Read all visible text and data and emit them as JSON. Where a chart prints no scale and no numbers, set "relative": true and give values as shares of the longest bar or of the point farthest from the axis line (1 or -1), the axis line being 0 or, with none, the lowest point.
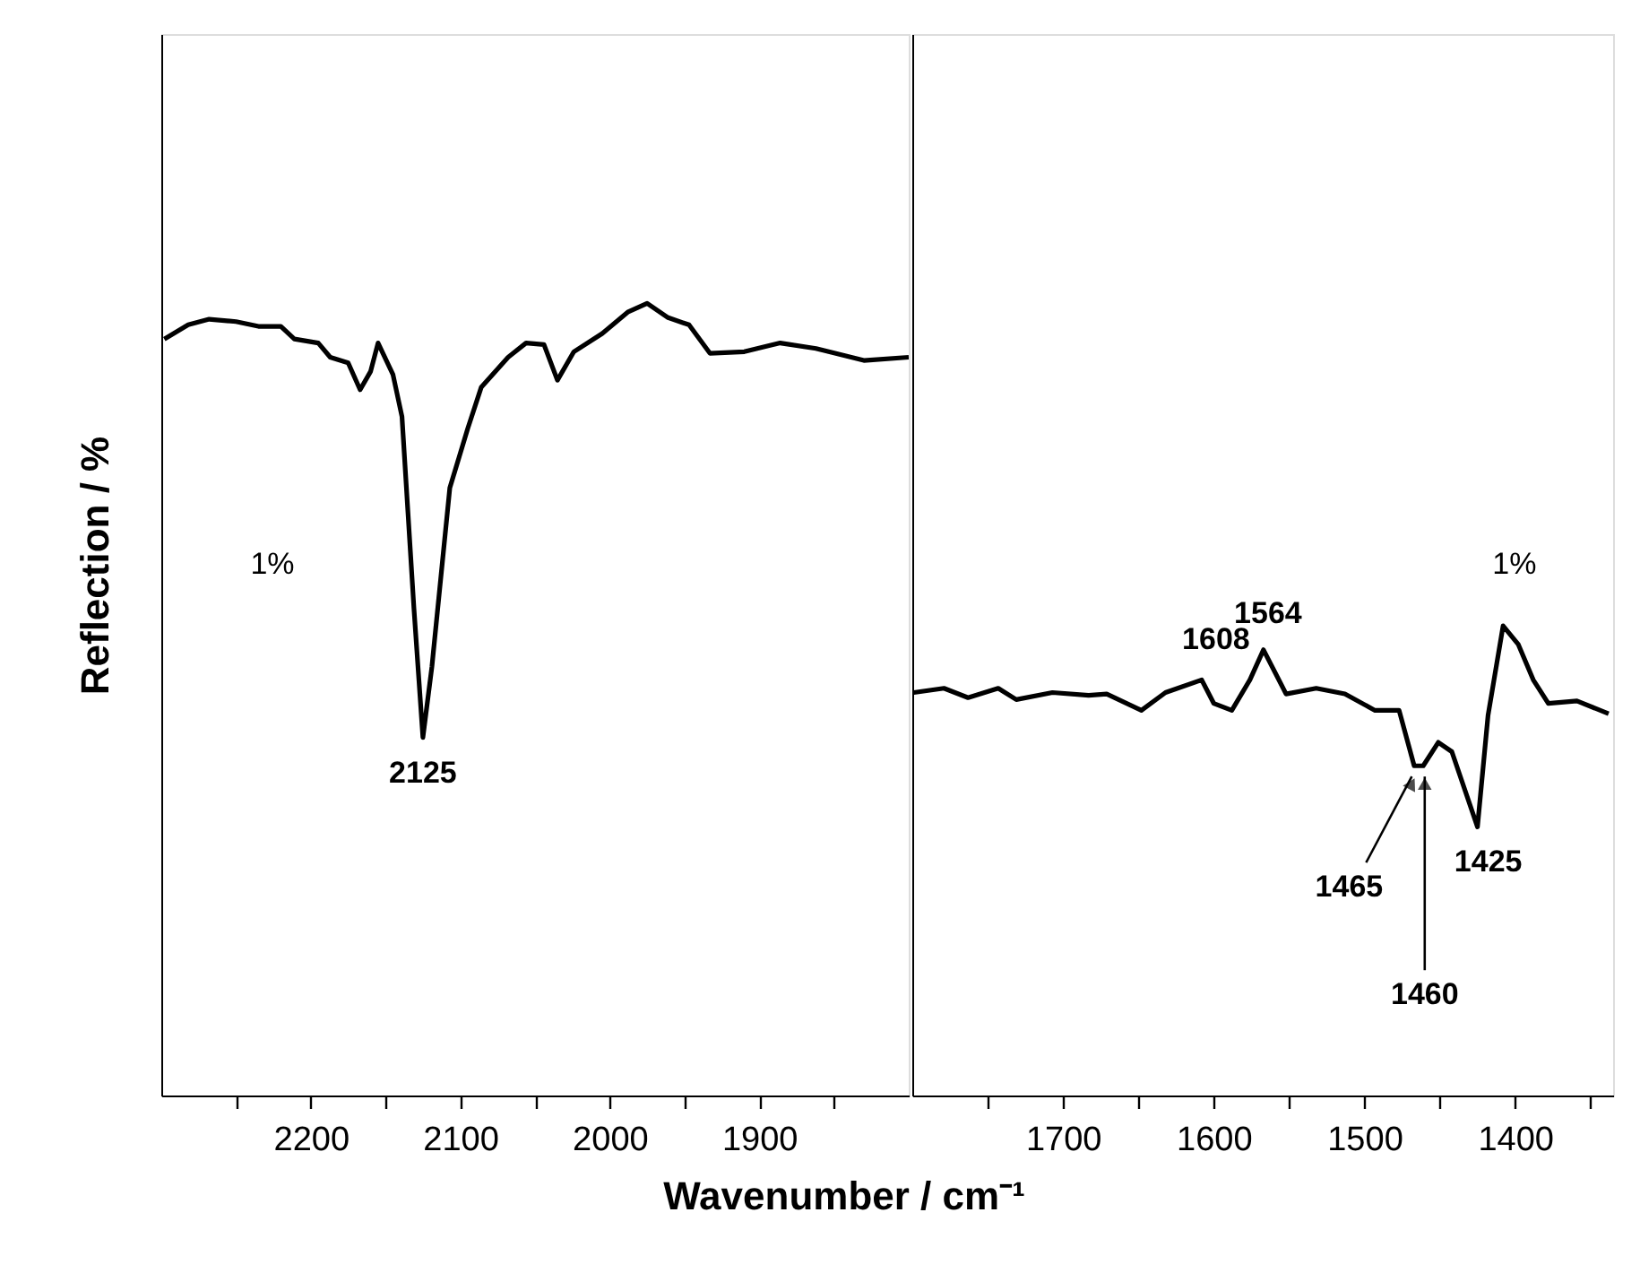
{
  "chart_data": [
    {
      "type": "line",
      "relative": true,
      "ylabel": "Reflection / %",
      "xlabel": "Wavenumber / cm⁻¹",
      "xlim": [
        2300,
        1800
      ],
      "xticks": [
        {
          "value": 2250,
          "label": null
        },
        2200,
        {
          "value": 2150,
          "label": null
        },
        2100,
        {
          "value": 2050,
          "label": null
        },
        2000,
        {
          "value": 1950,
          "label": null
        },
        1900,
        {
          "value": 1850,
          "label": null
        }
      ],
      "grid": false,
      "marker": "none",
      "line_style": "solid",
      "x": [
        2298,
        2282,
        2268,
        2250,
        2235,
        2220,
        2211,
        2195,
        2187,
        2175,
        2167,
        2160,
        2155,
        2145,
        2139,
        2131,
        2125,
        2119,
        2107,
        2095,
        2086,
        2068,
        2056,
        2044,
        2035,
        2024,
        2005,
        1988,
        1975,
        1961,
        1947,
        1933,
        1910,
        1886,
        1862,
        1830,
        1800
      ],
      "series": [
        {
          "color": "#000000",
          "values": [
            0.955,
            0.973,
            0.98,
            0.977,
            0.971,
            0.971,
            0.955,
            0.95,
            0.932,
            0.925,
            0.891,
            0.914,
            0.95,
            0.91,
            0.857,
            0.615,
            0.452,
            0.541,
            0.767,
            0.842,
            0.894,
            0.932,
            0.95,
            0.948,
            0.903,
            0.939,
            0.962,
            0.989,
            1,
            0.982,
            0.973,
            0.937,
            0.939,
            0.95,
            0.943,
            0.928,
            0.932
          ]
        }
      ],
      "annotations": [
        {
          "text": "2125",
          "x": 2125,
          "y": 0.452
        },
        "1%"
      ]
    },
    {
      "type": "line",
      "relative": true,
      "xlim": [
        1800,
        1335
      ],
      "xticks": [
        {
          "value": 1750,
          "label": null
        },
        1700,
        {
          "value": 1650,
          "label": null
        },
        1600,
        {
          "value": 1550,
          "label": null
        },
        1500,
        {
          "value": 1450,
          "label": null
        },
        1400,
        {
          "value": 1350,
          "label": null
        }
      ],
      "grid": false,
      "marker": "none",
      "line_style": "solid",
      "x": [
        1799,
        1779,
        1763,
        1743,
        1731,
        1707,
        1683,
        1671,
        1648,
        1632,
        1608,
        1600,
        1588,
        1576,
        1567,
        1552,
        1532,
        1513,
        1493,
        1477,
        1467,
        1461,
        1451,
        1442,
        1425,
        1418,
        1408,
        1398,
        1388,
        1378,
        1359,
        1338
      ],
      "series": [
        {
          "color": "#000000",
          "values": [
            0.858,
            0.867,
            0.847,
            0.867,
            0.843,
            0.858,
            0.852,
            0.855,
            0.82,
            0.858,
            0.885,
            0.835,
            0.82,
            0.885,
            0.949,
            0.855,
            0.867,
            0.855,
            0.82,
            0.82,
            0.702,
            0.702,
            0.752,
            0.732,
            0.572,
            0.809,
            1,
            0.961,
            0.885,
            0.835,
            0.84,
            0.813
          ]
        }
      ],
      "annotations": [
        {
          "text": "1608",
          "x": 1608,
          "y": 0.885
        },
        {
          "text": "1564",
          "x": 1564,
          "y": 0.949
        },
        {
          "text": "1465",
          "x": 1465,
          "y": 0.702
        },
        {
          "text": "1460",
          "x": 1460,
          "y": 0.702
        },
        {
          "text": "1425",
          "x": 1425,
          "y": 0.572
        },
        "1%"
      ]
    }
  ]
}
